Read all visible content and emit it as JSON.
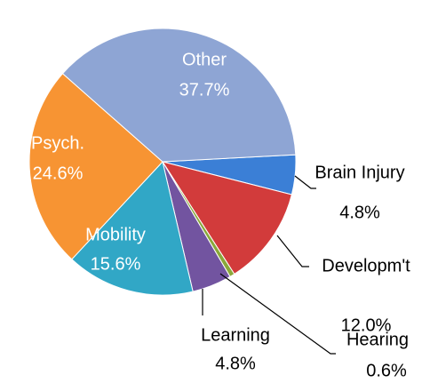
{
  "chart_data": {
    "type": "pie",
    "categories": [
      "Brain Injury",
      "Developm't",
      "Hearing",
      "Learning",
      "Mobility",
      "Psych.",
      "Other"
    ],
    "values": [
      4.8,
      12.0,
      0.6,
      4.8,
      15.6,
      24.6,
      37.7
    ],
    "value_labels": [
      "4.8%",
      "12.0%",
      "0.6%",
      "4.8%",
      "15.6%",
      "24.6%",
      "37.7%"
    ],
    "colors": [
      "#3b7fd6",
      "#d23b3b",
      "#8aa83a",
      "#7254a0",
      "#31a7c6",
      "#f79433",
      "#8ea5d4"
    ]
  }
}
